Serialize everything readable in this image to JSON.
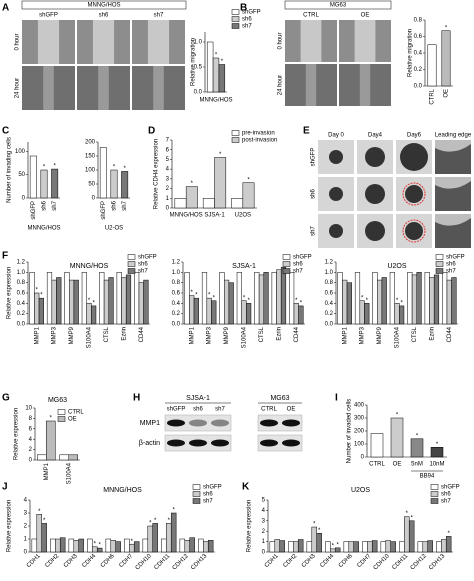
{
  "images": {
    "A": {
      "panel": "A",
      "group": "MNNG/HOS",
      "columns": [
        "shGFP",
        "sh6",
        "sh7"
      ],
      "rows": [
        "0 hour",
        "24 hour"
      ]
    },
    "B": {
      "panel": "B",
      "group": "MG63",
      "columns": [
        "CTRL",
        "OE"
      ],
      "rows": [
        "0 hour",
        "24 hour"
      ]
    },
    "E": {
      "panel": "E",
      "columns": [
        "Day 0",
        "Day4",
        "Day6",
        "Leading edge"
      ],
      "rows": [
        "shGFP",
        "sh6",
        "sh7"
      ]
    },
    "H": {
      "panel": "H",
      "groups": [
        "SJSA-1",
        "MG63"
      ],
      "lanes": [
        [
          "shGFP",
          "sh6",
          "sh7"
        ],
        [
          "CTRL",
          "OE"
        ]
      ],
      "rows": [
        "MMP1",
        "β-actin"
      ]
    }
  },
  "chart_data": [
    {
      "type": "bar",
      "ylabel": "Relative migration",
      "xlabel": "MNNG/HOS",
      "categories": [
        null
      ],
      "series": [
        {
          "name": "shGFP",
          "color": "#ffffff",
          "values": [
            1.0
          ]
        },
        {
          "name": "sh6",
          "color": "#cccccc",
          "values": [
            0.68
          ],
          "markers": [
            "*"
          ]
        },
        {
          "name": "sh7",
          "color": "#777777",
          "values": [
            0.55
          ],
          "markers": [
            "*"
          ]
        }
      ],
      "ylim": [
        0,
        1.2
      ],
      "yticks": [
        {
          "value": 0,
          "label": "0.0"
        },
        0.5,
        {
          "value": 1,
          "label": "1.0"
        }
      ]
    },
    {
      "type": "bar",
      "ylabel": "Relative migration",
      "categories": [
        "CTRL",
        "OE"
      ],
      "values": [
        0.5,
        0.67
      ],
      "colors": [
        "#ffffff",
        "#bbbbbb"
      ],
      "markers": [
        null,
        "*"
      ],
      "ylim": [
        0,
        0.8
      ],
      "yticks": [
        {
          "value": 0,
          "label": "0.0"
        },
        0.2,
        0.4,
        0.6,
        0.8
      ]
    },
    {
      "type": "bar",
      "panel": "C",
      "ylabel": "Number of invading cells",
      "xlabel": "MNNG/HOS",
      "categories": [
        "shGFP",
        "sh6",
        "sh7"
      ],
      "values": [
        90,
        60,
        62
      ],
      "colors": [
        "#ffffff",
        "#cccccc",
        "#777777"
      ],
      "markers": [
        null,
        "*",
        "*"
      ],
      "ylim": [
        0,
        120
      ],
      "yticks": [
        0,
        50,
        100
      ]
    },
    {
      "type": "bar",
      "xlabel": "U2-OS",
      "categories": [
        "shGFP",
        "sh6",
        "sh7"
      ],
      "values": [
        180,
        100,
        95
      ],
      "colors": [
        "#ffffff",
        "#cccccc",
        "#777777"
      ],
      "markers": [
        null,
        "*",
        "*"
      ],
      "ylim": [
        0,
        200
      ],
      "yticks": [
        0,
        50,
        100,
        150,
        200
      ]
    },
    {
      "type": "bar",
      "panel": "D",
      "ylabel": "Relative CDH4 expression",
      "categories": [
        "MNNG/HOS",
        "SJSA-1",
        "U2OS"
      ],
      "series": [
        {
          "name": "pre-invasion",
          "color": "#ffffff",
          "values": [
            1,
            1,
            1
          ]
        },
        {
          "name": "post-invasion",
          "color": "#cccccc",
          "values": [
            2.2,
            5.2,
            2.6
          ],
          "markers": [
            "*",
            "*",
            "*"
          ]
        }
      ],
      "ylim": [
        0,
        7
      ],
      "yticks": [
        0,
        1,
        2,
        3,
        4,
        5,
        6,
        7
      ]
    },
    {
      "type": "bar",
      "panel": "F",
      "title": "MNNG/HOS",
      "ylabel": "Relative expression",
      "categories": [
        "MMP1",
        "MMP3",
        "MMP9",
        "S100A4",
        "CTSL",
        "Ezrin",
        "CD44"
      ],
      "series": [
        {
          "name": "shGFP",
          "color": "#ffffff",
          "values": [
            1,
            1,
            1,
            1,
            1,
            1,
            1
          ]
        },
        {
          "name": "sh6",
          "color": "#cccccc",
          "values": [
            0.6,
            0.85,
            0.85,
            0.4,
            0.85,
            0.9,
            0.8
          ],
          "markers": [
            "*",
            null,
            null,
            "*",
            null,
            null,
            null
          ]
        },
        {
          "name": "sh7",
          "color": "#777777",
          "values": [
            0.5,
            0.9,
            0.85,
            0.35,
            0.9,
            0.95,
            0.85
          ],
          "markers": [
            "*",
            null,
            null,
            "*",
            null,
            null,
            null
          ]
        }
      ],
      "ylim": [
        0,
        1.2
      ],
      "yticks": [
        {
          "value": 0,
          "label": "0.0"
        },
        0.2,
        0.4,
        0.6,
        0.8,
        {
          "value": 1,
          "label": "1.0"
        },
        1.2
      ]
    },
    {
      "type": "bar",
      "title": "SJSA-1",
      "categories": [
        "MMP1",
        "MMP3",
        "MMP9",
        "S100A4",
        "CTSL",
        "Ezrin",
        "CD44"
      ],
      "series": [
        {
          "name": "shGFP",
          "color": "#ffffff",
          "values": [
            1,
            1,
            1,
            1,
            1,
            1,
            1
          ]
        },
        {
          "name": "sh6",
          "color": "#cccccc",
          "values": [
            0.55,
            0.5,
            0.85,
            0.45,
            0.95,
            1.05,
            0.4
          ],
          "markers": [
            "*",
            "*",
            null,
            "*",
            null,
            null,
            "*"
          ]
        },
        {
          "name": "sh7",
          "color": "#777777",
          "values": [
            0.5,
            0.45,
            0.8,
            0.4,
            1.0,
            1.1,
            0.35
          ],
          "markers": [
            "*",
            "*",
            null,
            "*",
            null,
            null,
            "*"
          ]
        }
      ],
      "ylim": [
        0,
        1.2
      ],
      "yticks": [
        {
          "value": 0,
          "label": "0.0"
        },
        0.2,
        0.4,
        0.6,
        0.8,
        {
          "value": 1,
          "label": "1.0"
        },
        1.2
      ]
    },
    {
      "type": "bar",
      "title": "U2OS",
      "categories": [
        "MMP1",
        "MMP3",
        "MMP9",
        "S100A4",
        "CTSL",
        "Ezrin",
        "CD44"
      ],
      "series": [
        {
          "name": "shGFP",
          "color": "#ffffff",
          "values": [
            1,
            1,
            1,
            1,
            1,
            1,
            1
          ]
        },
        {
          "name": "sh6",
          "color": "#cccccc",
          "values": [
            0.85,
            0.45,
            0.85,
            0.4,
            0.95,
            0.9,
            0.85
          ],
          "markers": [
            null,
            "*",
            null,
            "*",
            null,
            null,
            null
          ]
        },
        {
          "name": "sh7",
          "color": "#777777",
          "values": [
            0.8,
            0.4,
            0.9,
            0.35,
            1.0,
            0.95,
            0.9
          ],
          "markers": [
            null,
            "*",
            null,
            "*",
            null,
            null,
            null
          ]
        }
      ],
      "ylim": [
        0,
        1.2
      ],
      "yticks": [
        {
          "value": 0,
          "label": "0.0"
        },
        0.2,
        0.4,
        0.6,
        0.8,
        {
          "value": 1,
          "label": "1.0"
        },
        1.2
      ]
    },
    {
      "type": "bar",
      "panel": "G",
      "title": "MG63",
      "ylabel": "Relative expression",
      "categories": [
        "MMP1",
        "S100A4"
      ],
      "series": [
        {
          "name": "CTRL",
          "color": "#ffffff",
          "values": [
            1,
            1
          ]
        },
        {
          "name": "OE",
          "color": "#bbbbbb",
          "values": [
            7.5,
            1.0
          ],
          "markers": [
            "*",
            null
          ]
        }
      ],
      "ylim": [
        0,
        10
      ],
      "yticks": [
        0,
        2,
        4,
        6,
        8,
        10
      ]
    },
    {
      "type": "bar",
      "panel": "I",
      "ylabel": "Number of invaded cells",
      "categories": [
        "CTRL",
        "OE",
        "5nM",
        "10nM"
      ],
      "values": [
        180,
        300,
        140,
        75
      ],
      "colors": [
        "#ffffff",
        "#cccccc",
        "#888888",
        "#444444"
      ],
      "markers": [
        null,
        "*",
        "*",
        "*"
      ],
      "group_label": "BB94",
      "ylim": [
        0,
        400
      ],
      "yticks": [
        0,
        100,
        200,
        300,
        400
      ]
    },
    {
      "type": "bar",
      "panel": "J",
      "title": "MNNG/HOS",
      "ylabel": "Relative expression",
      "categories": [
        "CDH1",
        "CDH2",
        "CDH3",
        "CDH4",
        "CDH6",
        "CDH7",
        "CDH10",
        "CDH11",
        "CDH12",
        "CDH13"
      ],
      "series": [
        {
          "name": "shGFP",
          "color": "#ffffff",
          "values": [
            1,
            1,
            1,
            1,
            1,
            1,
            1,
            1,
            1,
            1
          ]
        },
        {
          "name": "sh6",
          "color": "#cccccc",
          "values": [
            2.9,
            1.0,
            0.9,
            0.4,
            0.9,
            0.6,
            2.0,
            2.2,
            0.9,
            0.8
          ],
          "markers": [
            "*",
            null,
            null,
            "*",
            null,
            "*",
            "*",
            "*",
            null,
            null
          ]
        },
        {
          "name": "sh7",
          "color": "#777777",
          "values": [
            2.2,
            1.1,
            1.0,
            0.3,
            0.8,
            0.8,
            2.2,
            3.0,
            1.1,
            0.9
          ],
          "markers": [
            "*",
            null,
            null,
            "*",
            null,
            null,
            "*",
            "*",
            null,
            null
          ]
        }
      ],
      "ylim": [
        0,
        4
      ],
      "yticks": [
        0,
        1,
        2,
        3,
        4
      ]
    },
    {
      "type": "bar",
      "panel": "K",
      "title": "U2OS",
      "ylabel": "Relative expression",
      "categories": [
        "CDH1",
        "CDH2",
        "CDH3",
        "CDH4",
        "CDH6",
        "CDH7",
        "CDH10",
        "CDH11",
        "CDH12",
        "CDH13"
      ],
      "series": [
        {
          "name": "shGFP",
          "color": "#ffffff",
          "values": [
            1,
            1,
            1,
            1,
            1,
            1,
            1,
            1,
            1,
            1
          ]
        },
        {
          "name": "sh6",
          "color": "#cccccc",
          "values": [
            1.2,
            1.0,
            2.4,
            0.3,
            1.0,
            1.0,
            1.1,
            3.4,
            1.0,
            1.2
          ],
          "markers": [
            null,
            null,
            "*",
            "*",
            null,
            null,
            null,
            "*",
            null,
            null
          ]
        },
        {
          "name": "sh7",
          "color": "#777777",
          "values": [
            1.1,
            1.2,
            1.8,
            0.4,
            1.0,
            1.1,
            1.0,
            3.0,
            1.1,
            1.5
          ],
          "markers": [
            null,
            null,
            "*",
            "*",
            null,
            null,
            null,
            "*",
            null,
            "*"
          ]
        }
      ],
      "ylim": [
        0,
        5
      ],
      "yticks": [
        0,
        1,
        2,
        3,
        4,
        5
      ]
    }
  ]
}
